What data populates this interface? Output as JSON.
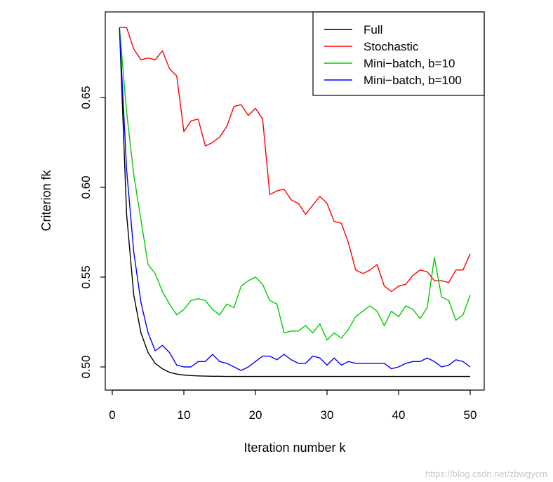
{
  "chart_data": {
    "type": "line",
    "title": "",
    "xlabel": "Iteration number k",
    "ylabel": "Criterion fk",
    "xlim": [
      0,
      50
    ],
    "ylim": [
      0.494,
      0.69
    ],
    "xticks": [
      0,
      10,
      20,
      30,
      40,
      50
    ],
    "yticks": [
      0.5,
      0.55,
      0.6,
      0.65
    ],
    "xtick_labels": [
      "0",
      "10",
      "20",
      "30",
      "40",
      "50"
    ],
    "ytick_labels": [
      "0.50",
      "0.55",
      "0.60",
      "0.65"
    ],
    "grid": false,
    "legend_position": "top-right",
    "x": [
      1,
      2,
      3,
      4,
      5,
      6,
      7,
      8,
      9,
      10,
      11,
      12,
      13,
      14,
      15,
      16,
      17,
      18,
      19,
      20,
      21,
      22,
      23,
      24,
      25,
      26,
      27,
      28,
      29,
      30,
      31,
      32,
      33,
      34,
      35,
      36,
      37,
      38,
      39,
      40,
      41,
      42,
      43,
      44,
      45,
      46,
      47,
      48,
      49,
      50
    ],
    "series": [
      {
        "name": "Full",
        "color": "#000000",
        "values": [
          0.689,
          0.585,
          0.54,
          0.519,
          0.508,
          0.502,
          0.499,
          0.497,
          0.496,
          0.4955,
          0.4952,
          0.495,
          0.4949,
          0.4948,
          0.4948,
          0.4947,
          0.4947,
          0.4947,
          0.4947,
          0.4947,
          0.4947,
          0.4947,
          0.4947,
          0.4947,
          0.4947,
          0.4947,
          0.4947,
          0.4947,
          0.4947,
          0.4947,
          0.4947,
          0.4947,
          0.4947,
          0.4947,
          0.4947,
          0.4947,
          0.4947,
          0.4947,
          0.4947,
          0.4947,
          0.4947,
          0.4947,
          0.4947,
          0.4947,
          0.4947,
          0.4947,
          0.4947,
          0.4947,
          0.4947,
          0.4947
        ]
      },
      {
        "name": "Stochastic",
        "color": "#ff0000",
        "values": [
          0.689,
          0.689,
          0.677,
          0.671,
          0.672,
          0.671,
          0.676,
          0.666,
          0.662,
          0.631,
          0.637,
          0.638,
          0.623,
          0.625,
          0.628,
          0.634,
          0.645,
          0.646,
          0.64,
          0.644,
          0.638,
          0.596,
          0.598,
          0.599,
          0.593,
          0.591,
          0.585,
          0.59,
          0.595,
          0.591,
          0.581,
          0.58,
          0.569,
          0.554,
          0.552,
          0.554,
          0.557,
          0.545,
          0.542,
          0.545,
          0.546,
          0.551,
          0.554,
          0.553,
          0.548,
          0.548,
          0.547,
          0.554,
          0.554,
          0.563
        ]
      },
      {
        "name": "Mini−batch, b=10",
        "color": "#00cc00",
        "values": [
          0.689,
          0.642,
          0.607,
          0.582,
          0.557,
          0.552,
          0.542,
          0.535,
          0.529,
          0.532,
          0.537,
          0.538,
          0.537,
          0.532,
          0.529,
          0.535,
          0.533,
          0.545,
          0.548,
          0.55,
          0.546,
          0.537,
          0.535,
          0.519,
          0.52,
          0.52,
          0.523,
          0.519,
          0.524,
          0.515,
          0.519,
          0.516,
          0.521,
          0.528,
          0.531,
          0.534,
          0.531,
          0.523,
          0.531,
          0.528,
          0.534,
          0.532,
          0.527,
          0.533,
          0.561,
          0.539,
          0.537,
          0.526,
          0.529,
          0.54
        ]
      },
      {
        "name": "Mini−batch, b=100",
        "color": "#0000ff",
        "values": [
          0.689,
          0.61,
          0.564,
          0.536,
          0.519,
          0.509,
          0.512,
          0.508,
          0.501,
          0.5,
          0.5,
          0.503,
          0.503,
          0.507,
          0.503,
          0.502,
          0.5,
          0.498,
          0.5,
          0.503,
          0.506,
          0.506,
          0.504,
          0.507,
          0.504,
          0.502,
          0.502,
          0.506,
          0.505,
          0.501,
          0.505,
          0.501,
          0.503,
          0.502,
          0.502,
          0.502,
          0.502,
          0.502,
          0.499,
          0.5,
          0.502,
          0.503,
          0.503,
          0.505,
          0.503,
          0.5,
          0.501,
          0.504,
          0.503,
          0.5
        ]
      }
    ]
  },
  "watermark": "https://blog.csdn.net/zbwgycm"
}
